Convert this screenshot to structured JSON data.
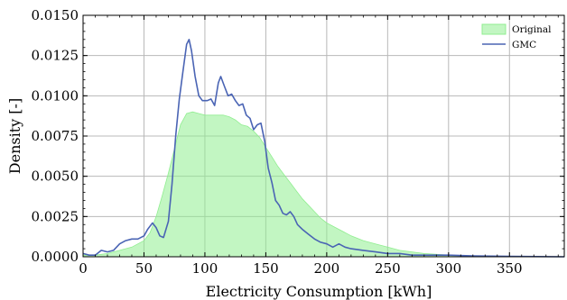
{
  "chart_data": {
    "type": "area",
    "xlabel": "Electricity Consumption [kWh]",
    "ylabel": "Density [-]",
    "xlim": [
      0,
      395
    ],
    "ylim": [
      0,
      0.015
    ],
    "x_ticks": [
      0,
      50,
      100,
      150,
      200,
      250,
      300,
      350
    ],
    "y_ticks": [
      0.0,
      0.0025,
      0.005,
      0.0075,
      0.01,
      0.0125,
      0.015
    ],
    "y_tick_labels": [
      "0.0000",
      "0.0025",
      "0.0050",
      "0.0075",
      "0.0100",
      "0.0125",
      "0.0150"
    ],
    "grid": true,
    "legend_position": "top-right",
    "series": [
      {
        "name": "Original",
        "style": "filled-area",
        "color": "#90ee90",
        "points": [
          [
            0,
            0.0001
          ],
          [
            10,
            0.0001
          ],
          [
            20,
            0.0002
          ],
          [
            30,
            0.0004
          ],
          [
            40,
            0.0006
          ],
          [
            50,
            0.001
          ],
          [
            55,
            0.0015
          ],
          [
            60,
            0.0025
          ],
          [
            65,
            0.0038
          ],
          [
            70,
            0.0052
          ],
          [
            75,
            0.0067
          ],
          [
            80,
            0.0082
          ],
          [
            85,
            0.0089
          ],
          [
            90,
            0.009
          ],
          [
            95,
            0.0089
          ],
          [
            100,
            0.0088
          ],
          [
            105,
            0.0088
          ],
          [
            110,
            0.0088
          ],
          [
            115,
            0.0088
          ],
          [
            120,
            0.0087
          ],
          [
            125,
            0.0085
          ],
          [
            130,
            0.0082
          ],
          [
            135,
            0.0081
          ],
          [
            140,
            0.0078
          ],
          [
            145,
            0.0074
          ],
          [
            150,
            0.0068
          ],
          [
            155,
            0.0062
          ],
          [
            160,
            0.0056
          ],
          [
            165,
            0.0051
          ],
          [
            170,
            0.0046
          ],
          [
            175,
            0.0041
          ],
          [
            180,
            0.0036
          ],
          [
            185,
            0.0032
          ],
          [
            190,
            0.0028
          ],
          [
            195,
            0.0024
          ],
          [
            200,
            0.0021
          ],
          [
            210,
            0.0017
          ],
          [
            220,
            0.0013
          ],
          [
            230,
            0.001
          ],
          [
            240,
            0.0008
          ],
          [
            250,
            0.0006
          ],
          [
            260,
            0.0004
          ],
          [
            270,
            0.0003
          ],
          [
            280,
            0.0002
          ],
          [
            300,
            0.0001
          ],
          [
            320,
            5e-05
          ],
          [
            350,
            2e-05
          ],
          [
            395,
            0.0
          ]
        ]
      },
      {
        "name": "GMC",
        "style": "line",
        "color": "#4a64b4",
        "points": [
          [
            0,
            0.0002
          ],
          [
            5,
            0.0001
          ],
          [
            10,
            0.0001
          ],
          [
            15,
            0.0004
          ],
          [
            20,
            0.0003
          ],
          [
            25,
            0.0004
          ],
          [
            30,
            0.0008
          ],
          [
            35,
            0.001
          ],
          [
            40,
            0.0011
          ],
          [
            45,
            0.0011
          ],
          [
            50,
            0.0013
          ],
          [
            53,
            0.0017
          ],
          [
            57,
            0.0021
          ],
          [
            60,
            0.0018
          ],
          [
            63,
            0.0013
          ],
          [
            66,
            0.0012
          ],
          [
            70,
            0.0022
          ],
          [
            73,
            0.0045
          ],
          [
            76,
            0.0075
          ],
          [
            79,
            0.0098
          ],
          [
            82,
            0.0115
          ],
          [
            85,
            0.0132
          ],
          [
            87,
            0.0135
          ],
          [
            89,
            0.0128
          ],
          [
            92,
            0.0112
          ],
          [
            95,
            0.01
          ],
          [
            98,
            0.0097
          ],
          [
            102,
            0.0097
          ],
          [
            105,
            0.0098
          ],
          [
            108,
            0.0094
          ],
          [
            111,
            0.0108
          ],
          [
            113,
            0.0112
          ],
          [
            116,
            0.0106
          ],
          [
            119,
            0.01
          ],
          [
            122,
            0.0101
          ],
          [
            125,
            0.0097
          ],
          [
            128,
            0.0094
          ],
          [
            131,
            0.0095
          ],
          [
            134,
            0.0088
          ],
          [
            137,
            0.0086
          ],
          [
            140,
            0.0079
          ],
          [
            143,
            0.0082
          ],
          [
            146,
            0.0083
          ],
          [
            149,
            0.0072
          ],
          [
            152,
            0.0055
          ],
          [
            155,
            0.0046
          ],
          [
            158,
            0.0035
          ],
          [
            161,
            0.0032
          ],
          [
            164,
            0.0027
          ],
          [
            167,
            0.0026
          ],
          [
            170,
            0.0028
          ],
          [
            173,
            0.0025
          ],
          [
            176,
            0.002
          ],
          [
            180,
            0.0017
          ],
          [
            185,
            0.0014
          ],
          [
            190,
            0.0011
          ],
          [
            195,
            0.0009
          ],
          [
            200,
            0.0008
          ],
          [
            205,
            0.0006
          ],
          [
            210,
            0.0008
          ],
          [
            215,
            0.0006
          ],
          [
            220,
            0.0005
          ],
          [
            230,
            0.0004
          ],
          [
            240,
            0.0003
          ],
          [
            250,
            0.0002
          ],
          [
            260,
            0.0002
          ],
          [
            270,
            0.0001
          ],
          [
            280,
            0.0001
          ],
          [
            300,
            0.0001
          ],
          [
            320,
            5e-05
          ],
          [
            350,
            2e-05
          ],
          [
            395,
            0.0
          ]
        ]
      }
    ]
  }
}
